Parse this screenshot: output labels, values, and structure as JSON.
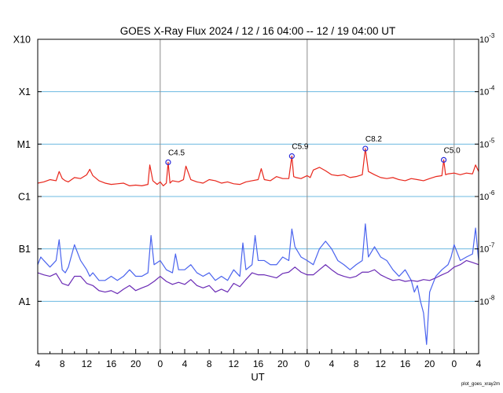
{
  "chart_data": {
    "type": "line",
    "title": "GOES X-Ray Flux   2024 / 12 / 16   04:00 -- 12 / 19   04:00   UT",
    "xlabel": "UT",
    "ylabel": "",
    "footer": "plot_goes_xray2m",
    "y_scale": "log",
    "ylim": [
      1e-09,
      0.001
    ],
    "xlim_hours": [
      0,
      72
    ],
    "grid": {
      "horizontal": true,
      "vertical_day_boundaries": true
    },
    "left_axis_labels": [
      {
        "text": "X10",
        "value": 0.001
      },
      {
        "text": "X1",
        "value": 0.0001
      },
      {
        "text": "M1",
        "value": 1e-05
      },
      {
        "text": "C1",
        "value": 1e-06
      },
      {
        "text": "B1",
        "value": 1e-07
      },
      {
        "text": "A1",
        "value": 1e-08
      }
    ],
    "right_axis_labels": [
      {
        "base": "10",
        "exp": "-3",
        "value": 0.001
      },
      {
        "base": "10",
        "exp": "-4",
        "value": 0.0001
      },
      {
        "base": "10",
        "exp": "-5",
        "value": 1e-05
      },
      {
        "base": "10",
        "exp": "-6",
        "value": 1e-06
      },
      {
        "base": "10",
        "exp": "-7",
        "value": 1e-07
      },
      {
        "base": "10",
        "exp": "-8",
        "value": 1e-08
      }
    ],
    "x_tick_labels": [
      "4",
      "8",
      "12",
      "16",
      "20",
      "0",
      "4",
      "8",
      "12",
      "16",
      "20",
      "0",
      "4",
      "8",
      "12",
      "16",
      "20",
      "0",
      "4"
    ],
    "day_boundaries_hours": [
      20,
      44,
      68
    ],
    "colors": {
      "long_channel": "#e8261b",
      "short_channel_1": "#4a63ee",
      "short_channel_2": "#6a2bb5",
      "grid": "#6cb8e0",
      "day_line": "#8c8c8c",
      "annotation_marker": "#2b2bd9"
    },
    "annotations": [
      {
        "label": "C4.5",
        "hour": 21.3,
        "value": 4.5e-06
      },
      {
        "label": "C5.9",
        "hour": 41.5,
        "value": 5.9e-06
      },
      {
        "label": "C8.2",
        "hour": 53.5,
        "value": 8.2e-06
      },
      {
        "label": "C5.0",
        "hour": 66.3,
        "value": 5e-06
      }
    ],
    "series": [
      {
        "name": "",
        "color": "#e8261b",
        "x": [
          0,
          1,
          2,
          3,
          3.5,
          4,
          4.5,
          5,
          6,
          7,
          8,
          8.5,
          9,
          10,
          11,
          12,
          13,
          14,
          15,
          16,
          17,
          18,
          18.3,
          18.8,
          19.5,
          20,
          20.5,
          21,
          21.3,
          21.6,
          22,
          23,
          23.8,
          24.2,
          25,
          26,
          27,
          28,
          29,
          30,
          31,
          32,
          33,
          34,
          35,
          36,
          36.5,
          37,
          38,
          39,
          40,
          41,
          41.5,
          41.8,
          42.2,
          43,
          44,
          44.5,
          45,
          46,
          47,
          48,
          49,
          50,
          51,
          52,
          53,
          53.5,
          54,
          55,
          56,
          57,
          58,
          59,
          60,
          61,
          62,
          63,
          64,
          65,
          66,
          66.3,
          66.6,
          67,
          68,
          69,
          70,
          71,
          71.5,
          72
        ],
        "y": [
          1.8e-06,
          1.9e-06,
          2.1e-06,
          2e-06,
          3e-06,
          2.2e-06,
          2e-06,
          1.9e-06,
          2.3e-06,
          2.2e-06,
          2.6e-06,
          3.3e-06,
          2.5e-06,
          2e-06,
          1.8e-06,
          1.7e-06,
          1.75e-06,
          1.8e-06,
          1.6e-06,
          1.65e-06,
          1.6e-06,
          1.7e-06,
          4e-06,
          2e-06,
          1.7e-06,
          1.9e-06,
          1.6e-06,
          1.8e-06,
          4.5e-06,
          1.8e-06,
          2e-06,
          1.9e-06,
          2.1e-06,
          3.8e-06,
          2.1e-06,
          1.9e-06,
          1.8e-06,
          2.1e-06,
          2e-06,
          1.8e-06,
          1.9e-06,
          1.75e-06,
          1.7e-06,
          1.9e-06,
          2e-06,
          2.1e-06,
          3.4e-06,
          2.1e-06,
          2e-06,
          2.4e-06,
          2.2e-06,
          2.2e-06,
          5.9e-06,
          2.4e-06,
          2.3e-06,
          2.2e-06,
          2.5e-06,
          2.3e-06,
          3.2e-06,
          3.6e-06,
          3.1e-06,
          2.6e-06,
          2.5e-06,
          2.6e-06,
          2.3e-06,
          2.4e-06,
          2.6e-06,
          8.2e-06,
          3e-06,
          2.6e-06,
          2.3e-06,
          2.2e-06,
          2.3e-06,
          2.1e-06,
          2e-06,
          2.2e-06,
          2.1e-06,
          2e-06,
          2.2e-06,
          2.4e-06,
          2.5e-06,
          5e-06,
          2.6e-06,
          2.7e-06,
          2.8e-06,
          2.6e-06,
          2.8e-06,
          2.7e-06,
          4e-06,
          3e-06
        ]
      },
      {
        "name": "",
        "color": "#4a63ee",
        "x": [
          0,
          0.5,
          1,
          2,
          3,
          3.5,
          4,
          4.5,
          5,
          6,
          7,
          8,
          8.5,
          9,
          10,
          11,
          12,
          13,
          14,
          15,
          16,
          17,
          18,
          18.5,
          19,
          20,
          21,
          22,
          22.5,
          23,
          24,
          25,
          26,
          27,
          28,
          29,
          30,
          31,
          32,
          33,
          33.5,
          34,
          35,
          35.5,
          36,
          37,
          38,
          39,
          40,
          41,
          41.5,
          42,
          43,
          44,
          45,
          46,
          47,
          48,
          49,
          50,
          51,
          52,
          53,
          53.5,
          54,
          55,
          56,
          57,
          58,
          59,
          60,
          61,
          61.5,
          62,
          62.5,
          63,
          63.5,
          64,
          65,
          66,
          67,
          67.5,
          68,
          69,
          70,
          71,
          71.5,
          72
        ],
        "y": [
          5e-08,
          7e-08,
          6e-08,
          4.5e-08,
          6e-08,
          1.5e-07,
          4e-08,
          3.5e-08,
          4.5e-08,
          1.2e-07,
          6e-08,
          4e-08,
          3e-08,
          3.5e-08,
          2.5e-08,
          2.5e-08,
          3e-08,
          2.5e-08,
          3e-08,
          4e-08,
          3e-08,
          3e-08,
          3.5e-08,
          1.8e-07,
          5e-08,
          6e-08,
          4e-08,
          3.5e-08,
          8e-08,
          4e-08,
          4e-08,
          5e-08,
          3.5e-08,
          3e-08,
          3.5e-08,
          2.5e-08,
          3e-08,
          2.5e-08,
          4e-08,
          3e-08,
          1.3e-07,
          4e-08,
          5e-08,
          1.8e-07,
          6e-08,
          6e-08,
          5e-08,
          5e-08,
          7e-08,
          6e-08,
          2.4e-07,
          1.1e-07,
          7e-08,
          6e-08,
          5e-08,
          1e-07,
          1.4e-07,
          1e-07,
          6e-08,
          5e-08,
          4e-08,
          5e-08,
          6e-08,
          3e-07,
          7e-08,
          1.1e-07,
          7e-08,
          6e-08,
          4e-08,
          3e-08,
          4e-08,
          2.5e-08,
          1.5e-08,
          2e-08,
          1e-08,
          6e-09,
          1.5e-09,
          1.5e-08,
          3e-08,
          4e-08,
          5e-08,
          7e-08,
          1.2e-07,
          6e-08,
          7e-08,
          8e-08,
          2.5e-07,
          6e-08
        ]
      },
      {
        "name": "",
        "color": "#6a2bb5",
        "x": [
          0,
          1,
          2,
          3,
          4,
          5,
          6,
          7,
          8,
          9,
          10,
          11,
          12,
          13,
          14,
          15,
          16,
          17,
          18,
          19,
          20,
          21,
          22,
          23,
          24,
          25,
          26,
          27,
          28,
          29,
          30,
          31,
          32,
          33,
          34,
          35,
          36,
          37,
          38,
          39,
          40,
          41,
          42,
          43,
          44,
          45,
          46,
          47,
          48,
          49,
          50,
          51,
          52,
          53,
          54,
          55,
          56,
          57,
          58,
          59,
          60,
          61,
          62,
          63,
          64,
          65,
          66,
          67,
          68,
          69,
          70,
          71,
          72
        ],
        "y": [
          3.5e-08,
          3.2e-08,
          3e-08,
          3.4e-08,
          2.2e-08,
          2e-08,
          3e-08,
          3e-08,
          2.2e-08,
          2e-08,
          1.6e-08,
          1.5e-08,
          1.6e-08,
          1.4e-08,
          1.7e-08,
          2e-08,
          1.6e-08,
          1.8e-08,
          2e-08,
          2.4e-08,
          3e-08,
          2.4e-08,
          2.1e-08,
          2.3e-08,
          2.1e-08,
          2.6e-08,
          2e-08,
          1.8e-08,
          2e-08,
          1.5e-08,
          1.7e-08,
          1.5e-08,
          2.2e-08,
          1.9e-08,
          2.6e-08,
          3.5e-08,
          3.2e-08,
          3.2e-08,
          3e-08,
          2.8e-08,
          3.4e-08,
          3.6e-08,
          4.5e-08,
          3.6e-08,
          3.2e-08,
          3.2e-08,
          4e-08,
          5e-08,
          4e-08,
          3.3e-08,
          3e-08,
          2.8e-08,
          3e-08,
          3.6e-08,
          3.6e-08,
          4e-08,
          3.2e-08,
          2.8e-08,
          2.5e-08,
          2.6e-08,
          2.4e-08,
          2.5e-08,
          2.4e-08,
          2.6e-08,
          2.5e-08,
          2.8e-08,
          3.2e-08,
          3.6e-08,
          4.5e-08,
          5e-08,
          6e-08,
          5.5e-08,
          5e-08
        ]
      }
    ]
  }
}
